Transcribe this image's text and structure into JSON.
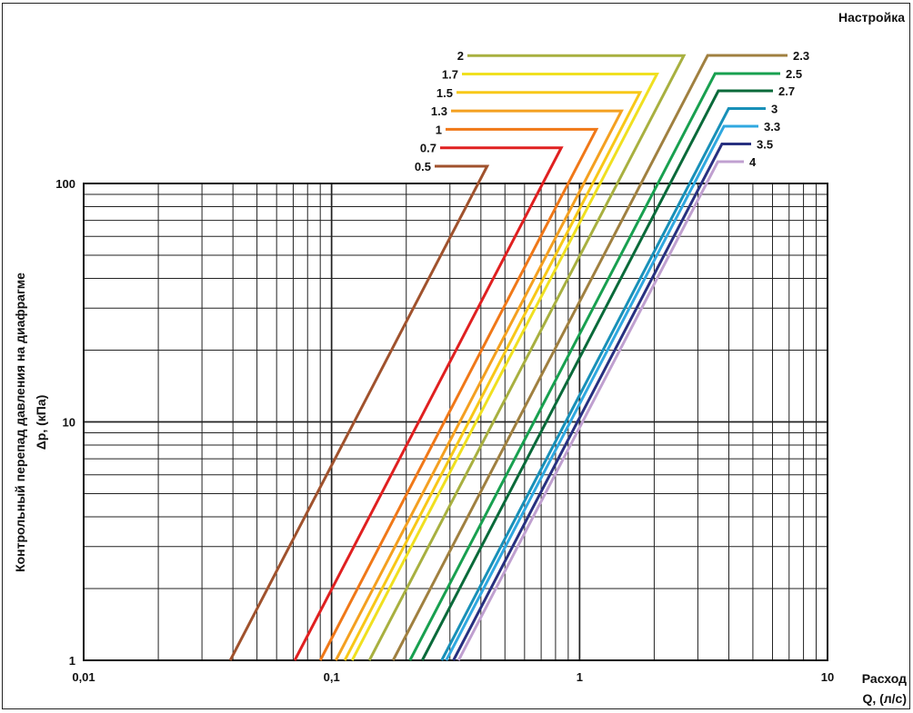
{
  "chart_data": {
    "type": "line",
    "title": "Настройка",
    "xlabel_line1": "Расход",
    "xlabel_line2": "Q, (л/с)",
    "ylabel_line1": "Контрольный перепад давления на диафрагме",
    "ylabel_line2": "Δp, (кПа)",
    "x_scale": "log",
    "y_scale": "log",
    "xlim": [
      0.01,
      10
    ],
    "ylim": [
      1,
      100
    ],
    "x_ticks": [
      {
        "value": 0.01,
        "label": "0,01"
      },
      {
        "value": 0.1,
        "label": "0,1"
      },
      {
        "value": 1,
        "label": "1"
      },
      {
        "value": 10,
        "label": "10"
      }
    ],
    "y_ticks": [
      {
        "value": 1,
        "label": "1"
      },
      {
        "value": 10,
        "label": "10"
      },
      {
        "value": 100,
        "label": "100"
      }
    ],
    "grid": true,
    "series": [
      {
        "name": "0.5",
        "color": "#a0522d",
        "q_at_1kPa": 0.039,
        "q_at_100kPa": 0.39
      },
      {
        "name": "0.7",
        "color": "#e02020",
        "q_at_1kPa": 0.071,
        "q_at_100kPa": 0.71
      },
      {
        "name": "1",
        "color": "#f07818",
        "q_at_1kPa": 0.09,
        "q_at_100kPa": 0.9
      },
      {
        "name": "1.3",
        "color": "#f4a020",
        "q_at_1kPa": 0.104,
        "q_at_100kPa": 1.04
      },
      {
        "name": "1.5",
        "color": "#f8c818",
        "q_at_1kPa": 0.113,
        "q_at_100kPa": 1.13
      },
      {
        "name": "1.7",
        "color": "#f0e020",
        "q_at_1kPa": 0.121,
        "q_at_100kPa": 1.21
      },
      {
        "name": "2",
        "color": "#a8b040",
        "q_at_1kPa": 0.142,
        "q_at_100kPa": 1.42
      },
      {
        "name": "2.3",
        "color": "#a08040",
        "q_at_1kPa": 0.177,
        "q_at_100kPa": 1.77
      },
      {
        "name": "2.5",
        "color": "#18a050",
        "q_at_1kPa": 0.207,
        "q_at_100kPa": 2.07
      },
      {
        "name": "2.7",
        "color": "#0a6a3a",
        "q_at_1kPa": 0.232,
        "q_at_100kPa": 2.32
      },
      {
        "name": "3",
        "color": "#1890b8",
        "q_at_1kPa": 0.278,
        "q_at_100kPa": 2.78
      },
      {
        "name": "3.3",
        "color": "#30a8e0",
        "q_at_1kPa": 0.29,
        "q_at_100kPa": 2.9
      },
      {
        "name": "3.5",
        "color": "#283080",
        "q_at_1kPa": 0.31,
        "q_at_100kPa": 3.1
      },
      {
        "name": "4",
        "color": "#c0a0d0",
        "q_at_1kPa": 0.325,
        "q_at_100kPa": 3.25
      }
    ]
  }
}
